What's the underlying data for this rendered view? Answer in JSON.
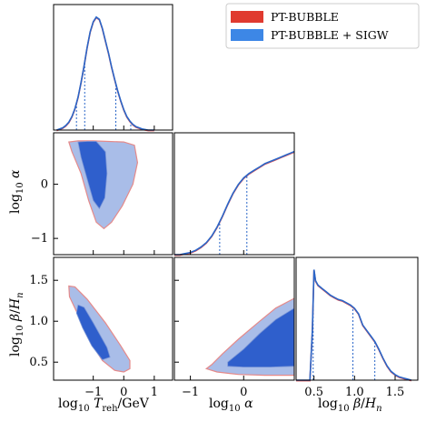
{
  "chart_data": {
    "type": "corner",
    "colors": {
      "series_a": "#e03a2f",
      "series_b": "#3d87e6",
      "line_a": "#e05050",
      "line_b": "#2a66c8",
      "region_inner": "#2f5fcc",
      "region_outer": "#a9bde8",
      "region_edge_a": "#e58a8a",
      "region_edge_b": "#7a95d6"
    },
    "legend": {
      "position": "top-right",
      "items": [
        {
          "label": "PT-BUBBLE",
          "color": "#e03a2f"
        },
        {
          "label": "PT-BUBBLE + SIGW",
          "color": "#3d87e6"
        }
      ]
    },
    "params": [
      {
        "axis_label": "log10 T_reh/GeV",
        "lim": [
          -2.3,
          1.6
        ],
        "ticks": [
          "−1",
          "0",
          "1"
        ],
        "tick_values": [
          -1,
          0,
          1
        ]
      },
      {
        "axis_label": "log10 α",
        "lim": [
          -1.3,
          0.95
        ],
        "ticks": [
          "−1",
          "0"
        ],
        "tick_values": [
          -1,
          0
        ]
      },
      {
        "axis_label": "log10 β/H_n",
        "lim": [
          0.28,
          1.78
        ],
        "ticks": [
          "0.5",
          "1.0",
          "1.5"
        ],
        "tick_values": [
          0.5,
          1.0,
          1.5
        ]
      }
    ],
    "diagonal": [
      {
        "param": "log10 T_reh/GeV",
        "x": [
          -2.2,
          -2.0,
          -1.9,
          -1.8,
          -1.7,
          -1.6,
          -1.5,
          -1.4,
          -1.3,
          -1.2,
          -1.1,
          -1.0,
          -0.9,
          -0.8,
          -0.7,
          -0.6,
          -0.5,
          -0.4,
          -0.3,
          -0.2,
          -0.1,
          0.0,
          0.1,
          0.2,
          0.3,
          0.4,
          0.5,
          0.6,
          0.8,
          1.0
        ],
        "y": [
          0.0,
          0.02,
          0.04,
          0.07,
          0.12,
          0.19,
          0.29,
          0.42,
          0.57,
          0.73,
          0.87,
          0.96,
          1.0,
          0.98,
          0.9,
          0.79,
          0.68,
          0.56,
          0.45,
          0.35,
          0.26,
          0.18,
          0.12,
          0.08,
          0.05,
          0.03,
          0.02,
          0.01,
          0.0,
          0.0
        ],
        "quantiles": [
          -1.55,
          -1.28,
          -0.26,
          0.23
        ]
      },
      {
        "param": "log10 α",
        "x": [
          -1.3,
          -1.2,
          -1.1,
          -1.0,
          -0.9,
          -0.8,
          -0.7,
          -0.6,
          -0.5,
          -0.4,
          -0.3,
          -0.2,
          -0.1,
          0.0,
          0.1,
          0.2,
          0.3,
          0.4,
          0.5,
          0.6,
          0.7,
          0.8,
          0.9,
          0.95
        ],
        "y": [
          0.0,
          0.0,
          0.01,
          0.02,
          0.04,
          0.07,
          0.11,
          0.17,
          0.25,
          0.35,
          0.46,
          0.56,
          0.64,
          0.7,
          0.74,
          0.77,
          0.8,
          0.83,
          0.85,
          0.87,
          0.89,
          0.91,
          0.93,
          0.94
        ],
        "quantiles": [
          -0.45,
          0.06
        ]
      },
      {
        "param": "log10 β/H_n",
        "x": [
          0.28,
          0.45,
          0.48,
          0.5,
          0.52,
          0.55,
          0.6,
          0.65,
          0.7,
          0.75,
          0.8,
          0.85,
          0.9,
          0.95,
          1.0,
          1.05,
          1.1,
          1.15,
          1.2,
          1.25,
          1.3,
          1.35,
          1.4,
          1.45,
          1.5,
          1.55,
          1.6,
          1.65,
          1.7
        ],
        "y": [
          0.0,
          0.0,
          0.45,
          1.0,
          0.9,
          0.86,
          0.83,
          0.8,
          0.77,
          0.75,
          0.73,
          0.72,
          0.7,
          0.68,
          0.65,
          0.6,
          0.5,
          0.45,
          0.4,
          0.35,
          0.28,
          0.2,
          0.13,
          0.08,
          0.05,
          0.03,
          0.02,
          0.01,
          0.0
        ],
        "quantiles": [
          0.49,
          0.98,
          1.25
        ]
      }
    ]
  }
}
